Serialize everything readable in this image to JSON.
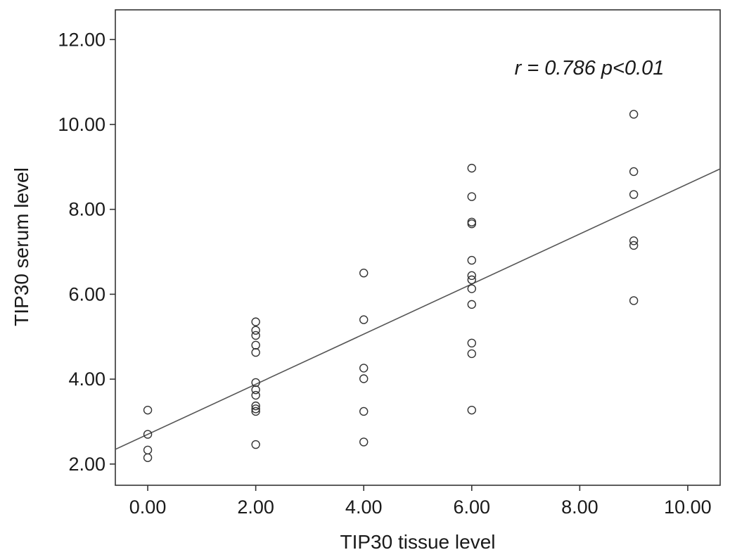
{
  "chart_data": {
    "type": "scatter",
    "xlabel": "TIP30 tissue level",
    "ylabel": "TIP30 serum level",
    "xlim": [
      -0.6,
      10.6
    ],
    "ylim": [
      1.5,
      12.7
    ],
    "x_ticks": [
      0,
      2,
      4,
      6,
      8,
      10
    ],
    "y_ticks": [
      2,
      4,
      6,
      8,
      10,
      12
    ],
    "x_tick_labels": [
      "0.00",
      "2.00",
      "4.00",
      "6.00",
      "8.00",
      "10.00"
    ],
    "y_tick_labels": [
      "2.00",
      "4.00",
      "6.00",
      "8.00",
      "10.00",
      "12.00"
    ],
    "grid": false,
    "annotation": "r = 0.786 p<0.01",
    "points": [
      {
        "x": 0,
        "y": 3.27
      },
      {
        "x": 0,
        "y": 2.7
      },
      {
        "x": 0,
        "y": 2.33
      },
      {
        "x": 0,
        "y": 2.15
      },
      {
        "x": 2,
        "y": 5.35
      },
      {
        "x": 2,
        "y": 5.15
      },
      {
        "x": 2,
        "y": 5.03
      },
      {
        "x": 2,
        "y": 4.8
      },
      {
        "x": 2,
        "y": 4.63
      },
      {
        "x": 2,
        "y": 3.92
      },
      {
        "x": 2,
        "y": 3.75
      },
      {
        "x": 2,
        "y": 3.62
      },
      {
        "x": 2,
        "y": 3.37
      },
      {
        "x": 2,
        "y": 3.3
      },
      {
        "x": 2,
        "y": 3.24
      },
      {
        "x": 2,
        "y": 2.46
      },
      {
        "x": 4,
        "y": 6.5
      },
      {
        "x": 4,
        "y": 5.4
      },
      {
        "x": 4,
        "y": 4.26
      },
      {
        "x": 4,
        "y": 4.01
      },
      {
        "x": 4,
        "y": 3.24
      },
      {
        "x": 4,
        "y": 2.52
      },
      {
        "x": 6,
        "y": 8.97
      },
      {
        "x": 6,
        "y": 8.3
      },
      {
        "x": 6,
        "y": 7.7
      },
      {
        "x": 6,
        "y": 7.66
      },
      {
        "x": 6,
        "y": 6.8
      },
      {
        "x": 6,
        "y": 6.44
      },
      {
        "x": 6,
        "y": 6.34
      },
      {
        "x": 6,
        "y": 6.13
      },
      {
        "x": 6,
        "y": 5.76
      },
      {
        "x": 6,
        "y": 4.85
      },
      {
        "x": 6,
        "y": 4.6
      },
      {
        "x": 6,
        "y": 3.27
      },
      {
        "x": 9,
        "y": 10.24
      },
      {
        "x": 9,
        "y": 8.89
      },
      {
        "x": 9,
        "y": 8.35
      },
      {
        "x": 9,
        "y": 7.26
      },
      {
        "x": 9,
        "y": 7.15
      },
      {
        "x": 9,
        "y": 5.85
      }
    ],
    "fit_line": {
      "intercept": 2.7,
      "slope": 0.59
    }
  }
}
